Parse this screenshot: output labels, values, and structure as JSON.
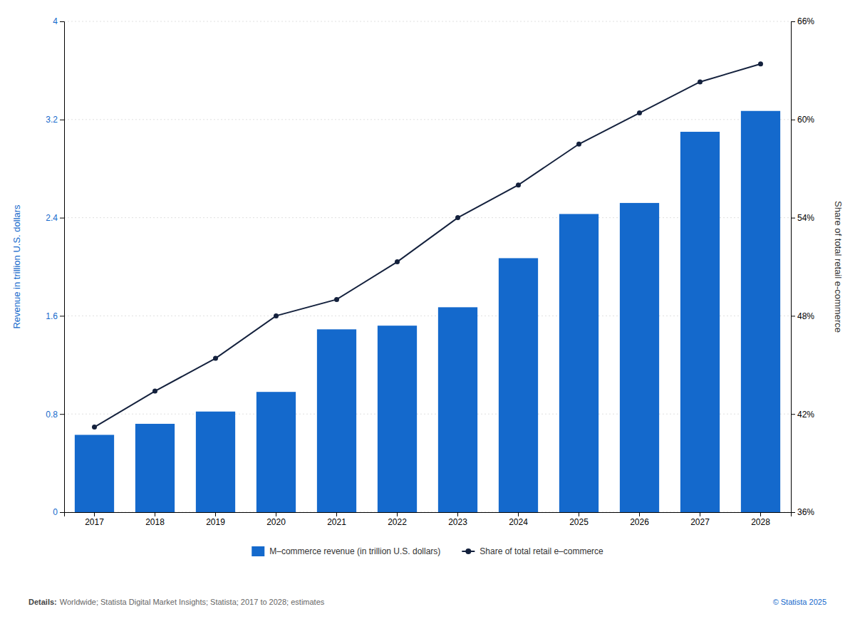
{
  "chart_data": {
    "type": "bar",
    "categories": [
      "2017",
      "2018",
      "2019",
      "2020",
      "2021",
      "2022",
      "2023",
      "2024",
      "2025",
      "2026",
      "2027",
      "2028"
    ],
    "series": [
      {
        "name": "M–commerce revenue (in trillion U.S. dollars)",
        "type": "bar",
        "color": "#1469CC",
        "values": [
          0.63,
          0.72,
          0.82,
          0.98,
          1.49,
          1.52,
          1.67,
          2.07,
          2.43,
          2.52,
          3.1,
          3.27
        ]
      },
      {
        "name": "Share of total retail e–commerce",
        "type": "line",
        "axis": "y2",
        "color": "#14213d",
        "marker": "circle",
        "values": [
          41.2,
          43.4,
          45.4,
          48.0,
          49.0,
          51.3,
          54.0,
          56.0,
          58.5,
          60.4,
          62.3,
          63.4
        ]
      }
    ],
    "ylabel": "Revenue in trillion U.S. dollars",
    "y2label": "Share of total retail e-commerce",
    "ylim": [
      0,
      4.0
    ],
    "yticks": [
      0,
      0.8,
      1.6,
      2.4,
      3.2,
      4
    ],
    "y2lim": [
      36,
      66
    ],
    "y2ticks": [
      {
        "value": 36,
        "label": "36%"
      },
      {
        "value": 42,
        "label": "42%"
      },
      {
        "value": 48,
        "label": "48%"
      },
      {
        "value": 54,
        "label": "54%"
      },
      {
        "value": 60,
        "label": "60%"
      },
      {
        "value": 66,
        "label": "66%"
      }
    ],
    "grid": true,
    "legend": "bottom",
    "annotations": [
      "Details:",
      " Worldwide; Statista Digital Market Insights; Statista; 2017 to 2028; estimates",
      "© Statista 2025"
    ]
  }
}
